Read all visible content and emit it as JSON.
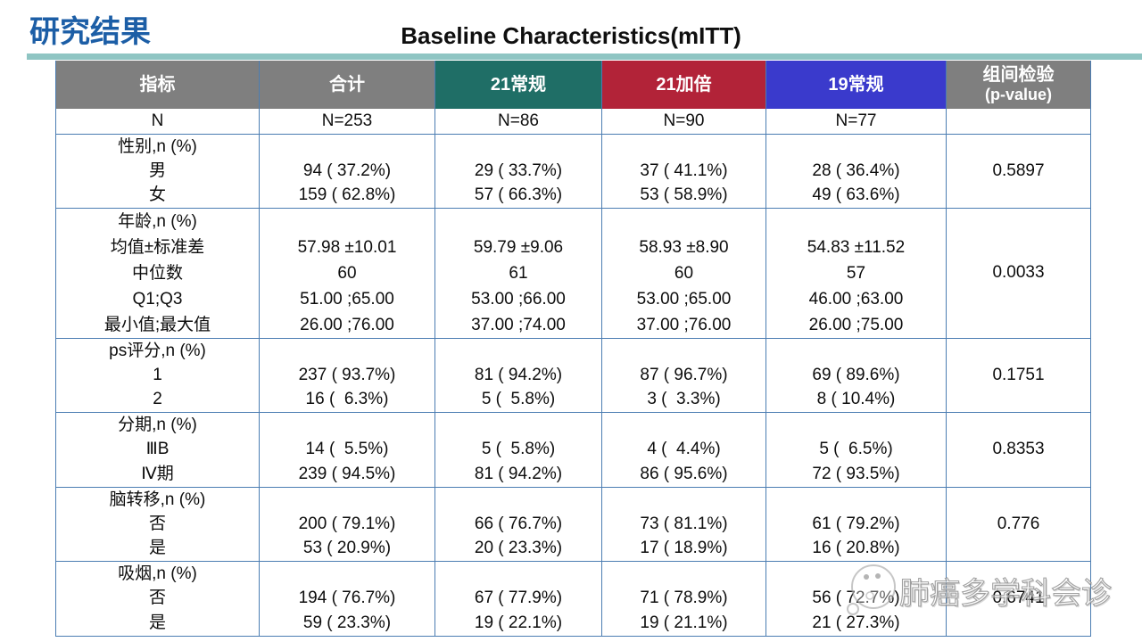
{
  "header": {
    "section_title": "研究结果",
    "slide_title": "Baseline Characteristics(mITT)"
  },
  "table": {
    "columns": [
      {
        "key": "indicator",
        "label": "指标",
        "bg": "#7f7f7f"
      },
      {
        "key": "total",
        "label": "合计",
        "bg": "#7f7f7f"
      },
      {
        "key": "regimen-21-standard",
        "label": "21常规",
        "bg": "#1f6e66"
      },
      {
        "key": "regimen-21-double",
        "label": "21加倍",
        "bg": "#b22338"
      },
      {
        "key": "regimen-19-standard",
        "label": "19常规",
        "bg": "#3a3acc"
      },
      {
        "key": "p-value",
        "label": "组间检验",
        "label2": "(p-value)",
        "bg": "#7f7f7f"
      }
    ],
    "n_row": {
      "indicator": "N",
      "values": [
        "N=253",
        "N=86",
        "N=90",
        "N=77"
      ],
      "p": ""
    },
    "groups": [
      {
        "key": "gender",
        "label": "性别,n (%)",
        "height": 83,
        "p": "0.5897",
        "rows": [
          {
            "name": "男",
            "values": [
              "94 ( 37.2%)",
              "29 ( 33.7%)",
              "37 ( 41.1%)",
              "28 ( 36.4%)"
            ]
          },
          {
            "name": "女",
            "values": [
              "159 ( 62.8%)",
              "57 ( 66.3%)",
              "53 ( 58.9%)",
              "49 ( 63.6%)"
            ]
          }
        ]
      },
      {
        "key": "age",
        "label": "年龄,n (%)",
        "height": 146,
        "p": "0.0033",
        "rows": [
          {
            "name": "均值±标准差",
            "values": [
              "57.98 ±10.01",
              "59.79 ±9.06",
              "58.93 ±8.90",
              "54.83 ±11.52"
            ]
          },
          {
            "name": "中位数",
            "values": [
              "60",
              "61",
              "60",
              "57"
            ]
          },
          {
            "name": "Q1;Q3",
            "values": [
              "51.00 ;65.00",
              "53.00 ;66.00",
              "53.00 ;65.00",
              "46.00 ;63.00"
            ]
          },
          {
            "name": "最小值;最大值",
            "values": [
              "26.00 ;76.00",
              "37.00 ;74.00",
              "37.00 ;76.00",
              "26.00 ;75.00"
            ]
          }
        ]
      },
      {
        "key": "ps-score",
        "label": "ps评分,n (%)",
        "height": 83,
        "p": "0.1751",
        "rows": [
          {
            "name": "1",
            "values": [
              "237 ( 93.7%)",
              "81 ( 94.2%)",
              "87 ( 96.7%)",
              "69 ( 89.6%)"
            ]
          },
          {
            "name": "2",
            "values": [
              "16 (  6.3%)",
              "5 (  5.8%)",
              "3 (  3.3%)",
              "8 ( 10.4%)"
            ]
          }
        ]
      },
      {
        "key": "stage",
        "label": "分期,n (%)",
        "height": 84,
        "p": "0.8353",
        "rows": [
          {
            "name": "ⅢB",
            "values": [
              "14 (  5.5%)",
              "5 (  5.8%)",
              "4 (  4.4%)",
              "5 (  6.5%)"
            ]
          },
          {
            "name": "Ⅳ期",
            "values": [
              "239 ( 94.5%)",
              "81 ( 94.2%)",
              "86 ( 95.6%)",
              "72 ( 93.5%)"
            ]
          }
        ]
      },
      {
        "key": "brain-metastasis",
        "label": "脑转移,n (%)",
        "height": 83,
        "p": "0.776",
        "rows": [
          {
            "name": "否",
            "values": [
              "200 ( 79.1%)",
              "66 ( 76.7%)",
              "73 ( 81.1%)",
              "61 ( 79.2%)"
            ]
          },
          {
            "name": "是",
            "values": [
              "53 ( 20.9%)",
              "20 ( 23.3%)",
              "17 ( 18.9%)",
              "16 ( 20.8%)"
            ]
          }
        ]
      },
      {
        "key": "smoking",
        "label": "吸烟,n (%)",
        "height": 83,
        "p": "0.6741",
        "rows": [
          {
            "name": "否",
            "values": [
              "194 ( 76.7%)",
              "67 ( 77.9%)",
              "71 ( 78.9%)",
              "56 ( 72.7%)"
            ]
          },
          {
            "name": "是",
            "values": [
              "59 ( 23.3%)",
              "19 ( 22.1%)",
              "19 ( 21.1%)",
              "21 ( 27.3%)"
            ]
          }
        ]
      }
    ]
  },
  "watermark": {
    "text": "肺癌多学科会诊",
    "icon": "speech-bubble-face"
  },
  "colors": {
    "title_blue": "#1c5ea6",
    "rule_teal": "#8fc5c3",
    "border_blue": "#4b7db2"
  }
}
